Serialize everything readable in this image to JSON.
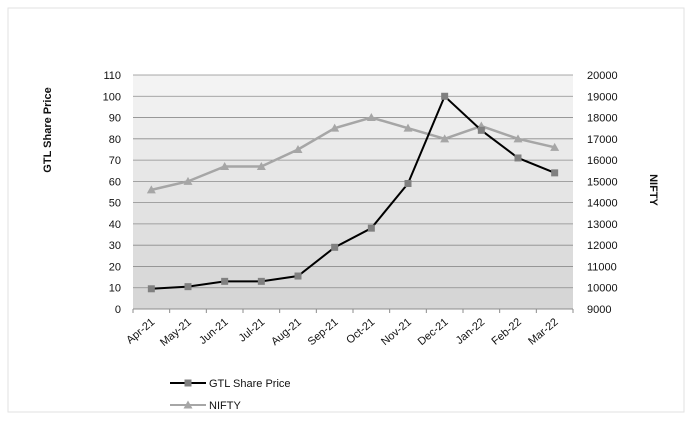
{
  "chart_data": {
    "type": "line",
    "title": "",
    "categories": [
      "Apr-21",
      "May-21",
      "Jun-21",
      "Jul-21",
      "Aug-21",
      "Sep-21",
      "Oct-21",
      "Nov-21",
      "Dec-21",
      "Jan-22",
      "Feb-22",
      "Mar-22"
    ],
    "left_axis": {
      "label": "GTL Share Price",
      "min": 0,
      "max": 110,
      "ticks": [
        "0",
        "10",
        "20",
        "30",
        "40",
        "50",
        "60",
        "70",
        "80",
        "90",
        "100",
        "110"
      ]
    },
    "right_axis": {
      "label": "NIFTY",
      "min": 9000,
      "max": 20000,
      "ticks": [
        "9000",
        "10000",
        "11000",
        "12000",
        "13000",
        "14000",
        "15000",
        "16000",
        "17000",
        "18000",
        "19000",
        "20000"
      ]
    },
    "series": [
      {
        "name": "GTL Share Price",
        "axis": "left",
        "color": "#000000",
        "marker": "square",
        "values": [
          9.5,
          10.5,
          13,
          13,
          15.5,
          29,
          38,
          59,
          100,
          84,
          71,
          64
        ]
      },
      {
        "name": "NIFTY",
        "axis": "right",
        "color": "#a6a6a6",
        "marker": "triangle",
        "values": [
          14600,
          15000,
          15700,
          15700,
          16500,
          17500,
          18000,
          17500,
          17000,
          17600,
          17000,
          16600
        ]
      }
    ],
    "grid": true,
    "legend_position": "bottom-left"
  }
}
